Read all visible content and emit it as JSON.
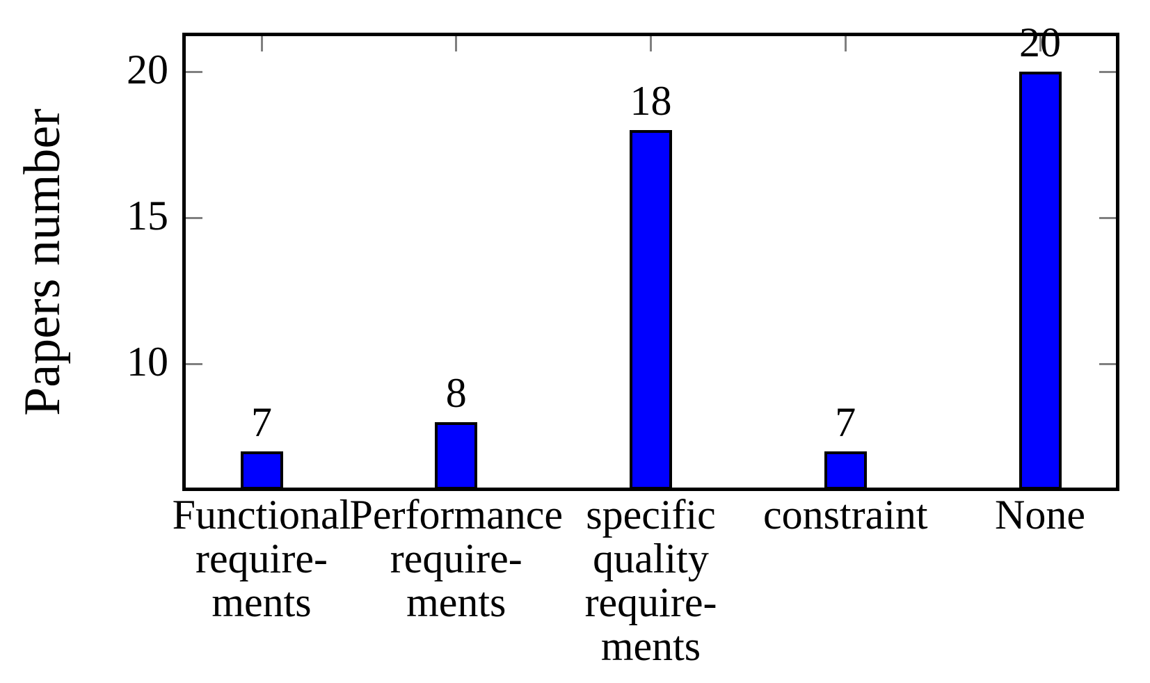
{
  "chart_data": {
    "type": "bar",
    "title": "",
    "xlabel": "",
    "ylabel": "Papers number",
    "categories": [
      "Functional requirements",
      "Performance requirements",
      "specific quality requirements",
      "constraint",
      "None"
    ],
    "category_display_lines": [
      [
        "Functional",
        "require-",
        "ments"
      ],
      [
        "Performance",
        "require-",
        "ments"
      ],
      [
        "specific",
        "quality",
        "require-",
        "ments"
      ],
      [
        "constraint"
      ],
      [
        "None"
      ]
    ],
    "values": [
      7,
      8,
      18,
      7,
      20
    ],
    "value_labels": [
      "7",
      "8",
      "18",
      "7",
      "20"
    ],
    "yticks": [
      10,
      15,
      20
    ],
    "ytick_labels": [
      "10",
      "15",
      "20"
    ],
    "ylim": [
      5.7,
      21.3
    ],
    "grid": false,
    "legend": null,
    "colors": {
      "bar_fill": "#0000ff",
      "bar_border": "#000000",
      "axis": "#000000",
      "tick_mark": "#808080",
      "text": "#000000",
      "background": "#ffffff"
    }
  }
}
